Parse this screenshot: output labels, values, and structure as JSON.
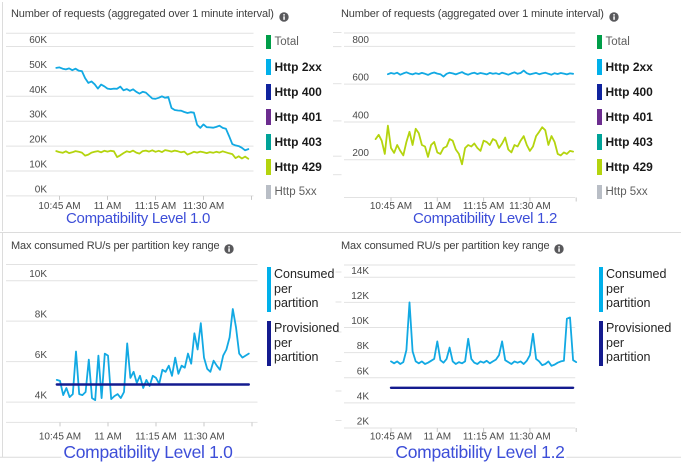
{
  "page": {
    "background": "#ffffff",
    "frame_color": "#dcdcdc",
    "gridline_color": "#e2e2e2",
    "tick_color": "#c9c9c9",
    "title_color": "#3f3f3f",
    "axis_label_color": "#4a4a4a",
    "caption_color": "#3d4ed8",
    "info_icon_color": "#58585b"
  },
  "chart_data": [
    {
      "id": "requests-level-1-0",
      "type": "line",
      "title": "Number of requests (aggregated over 1 minute interval)",
      "caption": "Compatibility Level 1.0",
      "legend_position": "right",
      "grid": true,
      "x_unit": "time",
      "x_ticks": [
        {
          "label": "10:45 AM",
          "minute": 45
        },
        {
          "label": "11 AM",
          "minute": 60
        },
        {
          "label": "11:15 AM",
          "minute": 75
        },
        {
          "label": "11:30 AM",
          "minute": 90
        },
        {
          "label": "",
          "minute": 105
        }
      ],
      "y_ticks": [
        {
          "label": "60K",
          "value": 60000
        },
        {
          "label": "50K",
          "value": 50000
        },
        {
          "label": "40K",
          "value": 40000
        },
        {
          "label": "30K",
          "value": 30000
        },
        {
          "label": "20K",
          "value": 20000
        },
        {
          "label": "10K",
          "value": 10000
        },
        {
          "label": "0K",
          "value": 0
        }
      ],
      "ylim": [
        0,
        65300
      ],
      "y_baseline": 0,
      "legend": [
        {
          "label": "Total",
          "color": "#009e49",
          "dim": true
        },
        {
          "label": "Http 2xx",
          "color": "#00b0ea",
          "dim": false
        },
        {
          "label": "Http 400",
          "color": "#10239e",
          "dim": false
        },
        {
          "label": "Http 401",
          "color": "#6c2d8f",
          "dim": false
        },
        {
          "label": "Http 403",
          "color": "#00a398",
          "dim": false
        },
        {
          "label": "Http 429",
          "color": "#b4d40e",
          "dim": false
        },
        {
          "label": "Http 5xx",
          "color": "#b9bec6",
          "dim": true
        }
      ],
      "series": [
        {
          "name": "Http 2xx",
          "color": "#12a9e3",
          "width": 1.8,
          "start_minute": 44,
          "values": [
            51400,
            51600,
            51100,
            50800,
            51200,
            50500,
            51100,
            50300,
            50100,
            47300,
            45400,
            46000,
            44800,
            43100,
            44700,
            44000,
            43100,
            42900,
            43100,
            43000,
            43900,
            42400,
            42900,
            42200,
            42800,
            41800,
            41100,
            41800,
            41500,
            40300,
            39100,
            39000,
            39400,
            40000,
            39400,
            39700,
            35300,
            34500,
            34300,
            34200,
            33700,
            33300,
            33600,
            33400,
            28600,
            27300,
            28700,
            27600,
            27500,
            27400,
            27700,
            28200,
            27300,
            27000,
            24000,
            20800,
            20300,
            20000,
            19300,
            18300,
            18800
          ]
        },
        {
          "name": "Http 429",
          "color": "#b4d40e",
          "width": 1.8,
          "start_minute": 44,
          "values": [
            18000,
            17600,
            17300,
            17900,
            17200,
            17500,
            18000,
            17700,
            17400,
            16200,
            16600,
            17400,
            17700,
            18000,
            17500,
            18100,
            17800,
            18100,
            17900,
            15600,
            16300,
            17200,
            17900,
            17600,
            18200,
            17400,
            17000,
            18000,
            18200,
            17800,
            18300,
            17700,
            18100,
            17600,
            18400,
            18100,
            17800,
            18200,
            17900,
            17500,
            17800,
            16600,
            17100,
            17700,
            17400,
            17800,
            17500,
            17200,
            17600,
            17300,
            17700,
            17400,
            17900,
            17500,
            17100,
            16800,
            15200,
            15900,
            15000,
            15800,
            14900
          ]
        }
      ]
    },
    {
      "id": "requests-level-1-2",
      "type": "line",
      "title": "Number of requests (aggregated over 1 minute interval)",
      "caption": "Compatibility Level 1.2",
      "legend_position": "right",
      "grid": true,
      "x_unit": "time",
      "x_ticks": [
        {
          "label": "10:45 AM",
          "minute": 45
        },
        {
          "label": "11 AM",
          "minute": 60
        },
        {
          "label": "11:15 AM",
          "minute": 75
        },
        {
          "label": "11:30 AM",
          "minute": 90
        },
        {
          "label": "",
          "minute": 105
        }
      ],
      "y_ticks": [
        {
          "label": "800",
          "value": 800
        },
        {
          "label": "600",
          "value": 600
        },
        {
          "label": "400",
          "value": 400
        },
        {
          "label": "200",
          "value": 200
        }
      ],
      "ylim": [
        0,
        871
      ],
      "y_baseline": 0,
      "legend": [
        {
          "label": "Total",
          "color": "#009e49",
          "dim": true
        },
        {
          "label": "Http 2xx",
          "color": "#00b0ea",
          "dim": false
        },
        {
          "label": "Http 400",
          "color": "#10239e",
          "dim": false
        },
        {
          "label": "Http 401",
          "color": "#6c2d8f",
          "dim": false
        },
        {
          "label": "Http 403",
          "color": "#00a398",
          "dim": false
        },
        {
          "label": "Http 429",
          "color": "#b4d40e",
          "dim": false
        },
        {
          "label": "Http 5xx",
          "color": "#b9bec6",
          "dim": true
        }
      ],
      "series": [
        {
          "name": "Http 2xx",
          "color": "#12a9e3",
          "width": 1.8,
          "start_minute": 44,
          "values": [
            653,
            659,
            655,
            661,
            650,
            657,
            663,
            656,
            652,
            658,
            654,
            660,
            655,
            649,
            657,
            662,
            656,
            653,
            640,
            655,
            661,
            657,
            652,
            658,
            664,
            655,
            650,
            657,
            661,
            654,
            659,
            656,
            652,
            660,
            655,
            658,
            653,
            661,
            656,
            650,
            657,
            663,
            655,
            659,
            672,
            658,
            652,
            656,
            660,
            653,
            657,
            661,
            655,
            650,
            658,
            654,
            659,
            656,
            652,
            657,
            655
          ]
        },
        {
          "name": "Http 429",
          "color": "#b4d40e",
          "width": 1.8,
          "start_minute": 40,
          "values": [
            309,
            332,
            301,
            231,
            380,
            262,
            236,
            278,
            247,
            223,
            294,
            348,
            278,
            364,
            340,
            278,
            270,
            215,
            278,
            294,
            239,
            231,
            262,
            270,
            309,
            301,
            254,
            231,
            176,
            262,
            278,
            270,
            286,
            262,
            247,
            301,
            294,
            278,
            309,
            301,
            262,
            286,
            317,
            254,
            239,
            278,
            270,
            301,
            325,
            278,
            247,
            270,
            325,
            348,
            372,
            356,
            278,
            325,
            294,
            231,
            223,
            239,
            231,
            247,
            243
          ]
        }
      ]
    },
    {
      "id": "ru-level-1-0",
      "type": "line",
      "title": "Max consumed RU/s per partition key range",
      "caption": "Compatibility Level 1.0",
      "legend_position": "right",
      "grid": true,
      "x_unit": "time",
      "x_ticks": [
        {
          "label": "10:45 AM",
          "minute": 45
        },
        {
          "label": "11 AM",
          "minute": 60
        },
        {
          "label": "11:15 AM",
          "minute": 75
        },
        {
          "label": "11:30 AM",
          "minute": 90
        },
        {
          "label": "",
          "minute": 105
        }
      ],
      "y_ticks": [
        {
          "label": "10K",
          "value": 10000
        },
        {
          "label": "8K",
          "value": 8000
        },
        {
          "label": "6K",
          "value": 6000
        },
        {
          "label": "4K",
          "value": 4000
        }
      ],
      "ylim": [
        3000,
        10800
      ],
      "y_baseline": 3000,
      "legend": [
        {
          "label": "Consumed per partition",
          "color": "#00b0ea",
          "dim": false
        },
        {
          "label": "Provisioned per partition",
          "color": "#141b8f",
          "dim": false
        }
      ],
      "series": [
        {
          "name": "Consumed per partition",
          "color": "#12a9e3",
          "width": 1.8,
          "start_minute": 44,
          "values": [
            5100,
            5050,
            4350,
            4700,
            4250,
            4400,
            6500,
            4400,
            4350,
            4500,
            6100,
            4200,
            4100,
            6300,
            4200,
            6400,
            6300,
            4150,
            4300,
            4400,
            4200,
            4500,
            6900,
            5200,
            5500,
            4950,
            5300,
            4700,
            5100,
            4800,
            5300,
            5200,
            4900,
            5600,
            5500,
            5800,
            5300,
            6200,
            5400,
            5800,
            5700,
            6400,
            5900,
            7400,
            6600,
            7900,
            6200,
            5650,
            5500,
            6050,
            5800,
            5600,
            6300,
            6600,
            7200,
            8600,
            7700,
            6400,
            6200,
            6300,
            6400
          ]
        },
        {
          "name": "Provisioned per partition",
          "color": "#141b8f",
          "width": 2.4,
          "start_minute": 44,
          "end_minute": 104,
          "constant_value": 4870
        }
      ]
    },
    {
      "id": "ru-level-1-2",
      "type": "line",
      "title": "Max consumed RU/s per partition key range",
      "caption": "Compatibility Level 1.2",
      "legend_position": "right",
      "grid": true,
      "x_unit": "time",
      "x_ticks": [
        {
          "label": "10:45 AM",
          "minute": 45
        },
        {
          "label": "11 AM",
          "minute": 60
        },
        {
          "label": "11:15 AM",
          "minute": 75
        },
        {
          "label": "11:30 AM",
          "minute": 90
        },
        {
          "label": "",
          "minute": 105
        }
      ],
      "y_ticks": [
        {
          "label": "14K",
          "value": 14000
        },
        {
          "label": "12K",
          "value": 12000
        },
        {
          "label": "10K",
          "value": 10000
        },
        {
          "label": "8K",
          "value": 8000
        },
        {
          "label": "6K",
          "value": 6000
        },
        {
          "label": "4K",
          "value": 4000
        },
        {
          "label": "2K",
          "value": 2000
        }
      ],
      "ylim": [
        2000,
        14980
      ],
      "y_baseline": 2000,
      "legend": [
        {
          "label": "Consumed per partition",
          "color": "#00b0ea",
          "dim": false
        },
        {
          "label": "Provisioned per partition",
          "color": "#141b8f",
          "dim": false
        }
      ],
      "series": [
        {
          "name": "Consumed per partition",
          "color": "#12a9e3",
          "width": 1.8,
          "start_minute": 45,
          "values": [
            7300,
            7150,
            7300,
            7100,
            7250,
            8200,
            12000,
            8100,
            7300,
            7150,
            7300,
            7100,
            7200,
            7350,
            7500,
            8900,
            7400,
            7200,
            7500,
            8400,
            7300,
            7100,
            7250,
            7150,
            7300,
            9100,
            7500,
            7200,
            7100,
            7300,
            7200,
            7350,
            7150,
            7300,
            7450,
            7800,
            8900,
            7400,
            7250,
            7100,
            7300,
            7200,
            7300,
            7100,
            7350,
            7800,
            9500,
            7500,
            7300,
            7000,
            7100,
            7300,
            6950,
            7050,
            7200,
            7300,
            7350,
            10700,
            10800,
            7400,
            7250
          ]
        },
        {
          "name": "Provisioned per partition",
          "color": "#141b8f",
          "width": 2.4,
          "start_minute": 45,
          "end_minute": 104,
          "constant_value": 5200
        }
      ]
    }
  ]
}
